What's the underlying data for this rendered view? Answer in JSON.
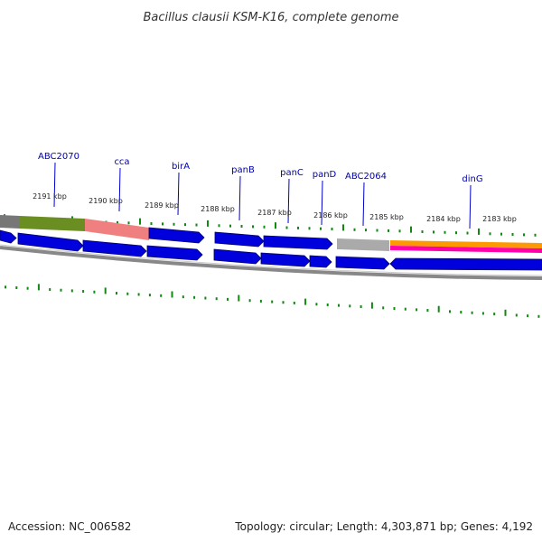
{
  "title": "Bacillus clausii KSM-K16, complete genome",
  "footer": {
    "accession": "Accession: NC_006582",
    "summary": "Topology: circular; Length: 4,303,871 bp; Genes: 4,192"
  },
  "kbp_labels": [
    "2191 kbp",
    "2190 kbp",
    "2189 kbp",
    "2188 kbp",
    "2187 kbp",
    "2186 kbp",
    "2185 kbp",
    "2184 kbp",
    "2183 kbp"
  ],
  "gene_labels": [
    "ABC2070",
    "cca",
    "birA",
    "panB",
    "panC",
    "panD",
    "ABC2064",
    "dinG"
  ],
  "colors": {
    "gene": "#0000dd",
    "tick": "#118811",
    "backbone": "#888888",
    "feature_green": "#6b8e23",
    "feature_pink": "#f08080",
    "feature_gray": "#aaaaaa",
    "feature_orange": "#ff9900",
    "feature_magenta": "#ff00aa",
    "label_line": "#0000cc"
  }
}
